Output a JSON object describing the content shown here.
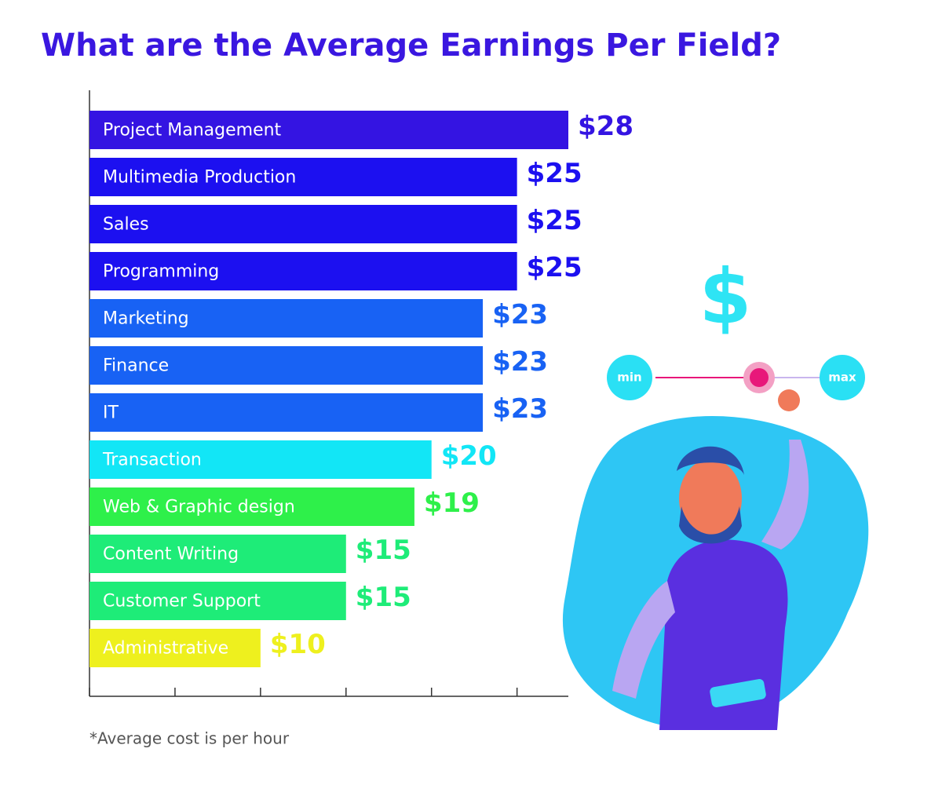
{
  "chart_data": {
    "type": "hbar",
    "title": "What are the Average Earnings Per Field?",
    "categories": [
      "Project Management",
      "Multimedia Production",
      "Sales",
      "Programming",
      "Marketing",
      "Finance",
      "IT",
      "Transaction",
      "Web & Graphic design",
      "Content Writing",
      "Customer Support",
      "Administrative"
    ],
    "values": [
      28,
      25,
      25,
      25,
      23,
      23,
      23,
      20,
      19,
      15,
      15,
      10
    ],
    "value_labels": [
      "$28",
      "$25",
      "$25",
      "$25",
      "$23",
      "$23",
      "$23",
      "$20",
      "$19",
      "$15",
      "$15",
      "$10"
    ],
    "colors": [
      "#3414e2",
      "#1c10f0",
      "#1c10f0",
      "#1c10f0",
      "#1862f4",
      "#1862f4",
      "#1862f4",
      "#12e6f6",
      "#2ef04a",
      "#1eec78",
      "#1eec78",
      "#eef01e"
    ],
    "xlim": [
      0,
      28
    ],
    "xticks": [
      0,
      5,
      10,
      15,
      20,
      25
    ],
    "note": "*Average cost is per hour"
  },
  "illustration": {
    "symbol": "$",
    "min_label": "min",
    "max_label": "max"
  }
}
